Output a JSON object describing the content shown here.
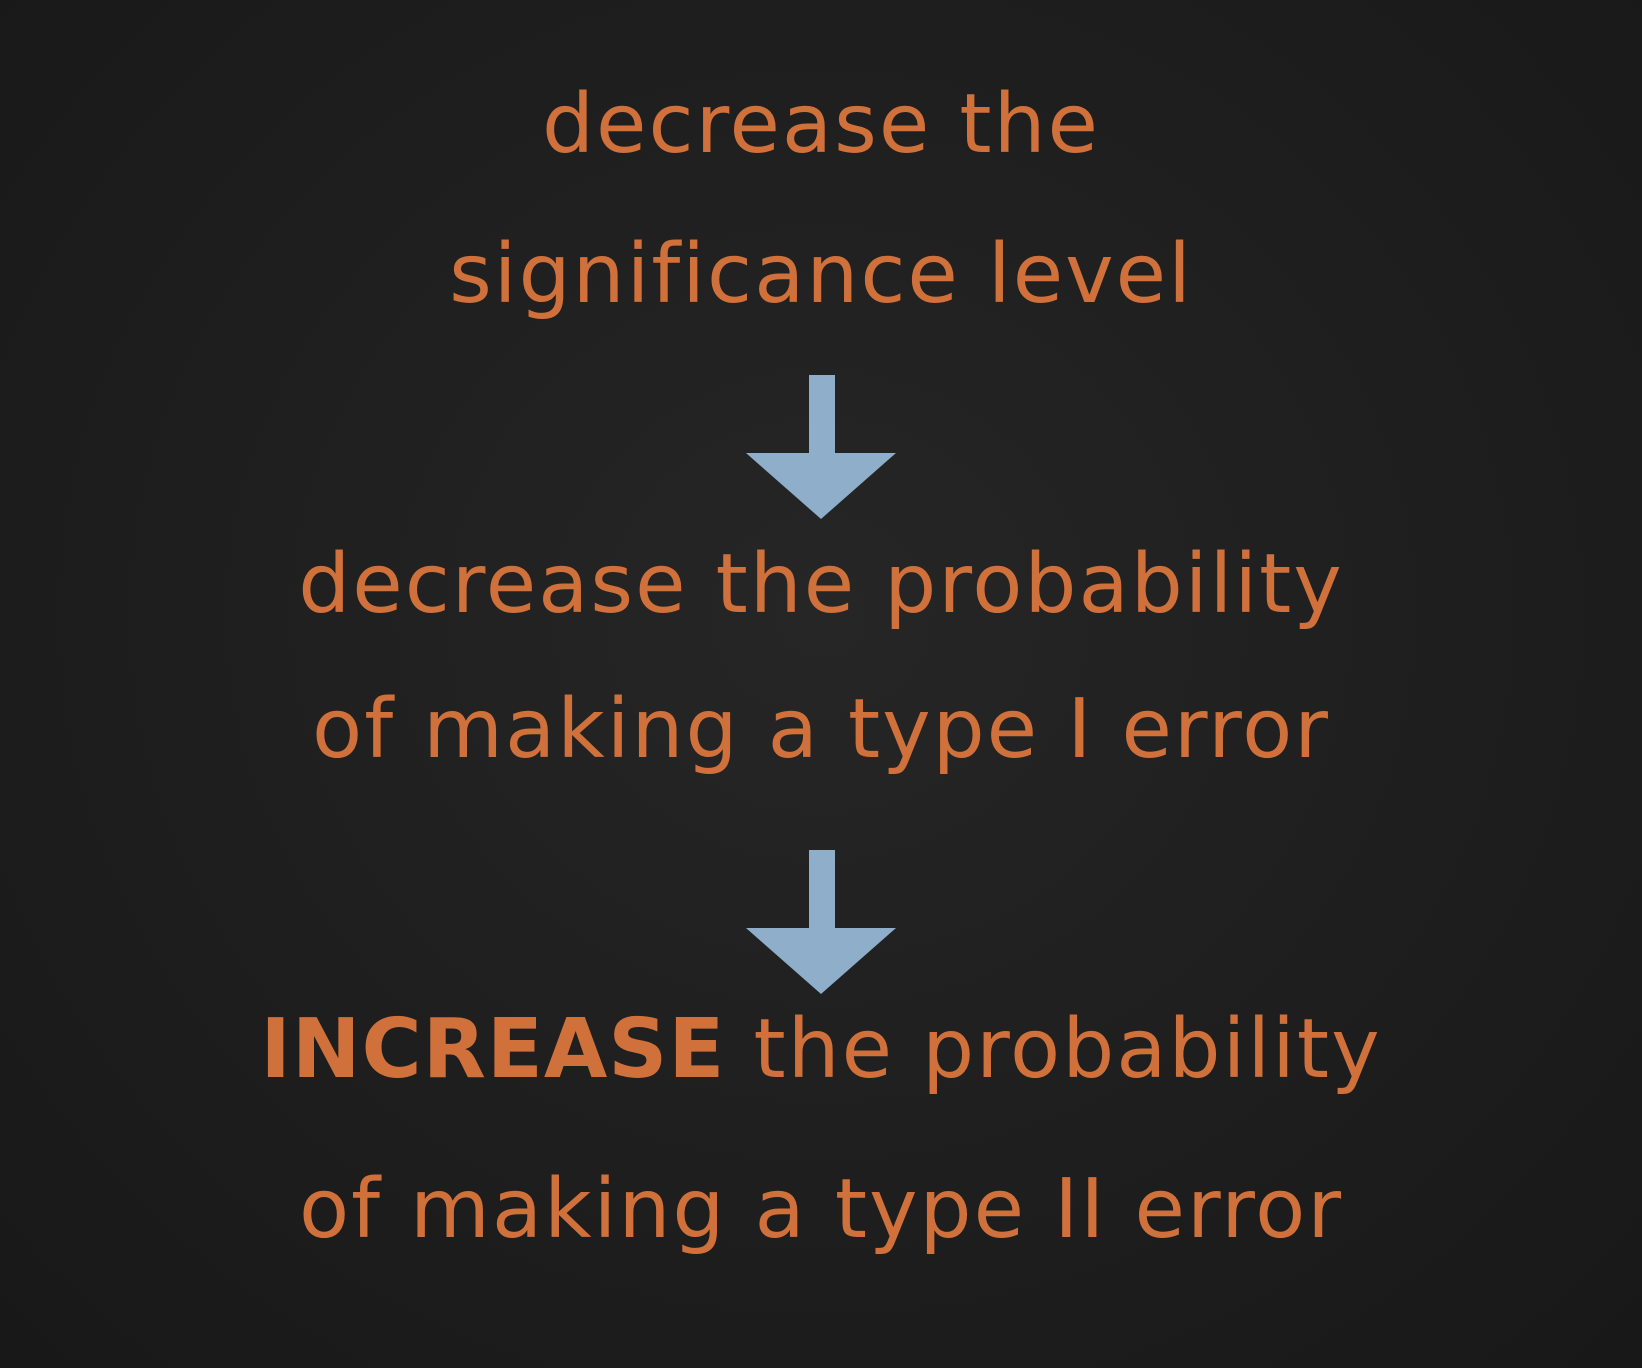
{
  "colors": {
    "background": "#1f1f1f",
    "text": "#d0703a",
    "arrow": "#8eaec9"
  },
  "flow": {
    "step1": {
      "line1": "decrease the",
      "line2": "significance level"
    },
    "step2": {
      "line1": "decrease the probability",
      "line2": "of making a type I error"
    },
    "step3": {
      "emphasis": "INCREASE",
      "line1_rest": " the probability",
      "line2": "of making a type II error"
    },
    "arrows": [
      "down-arrow-icon",
      "down-arrow-icon"
    ]
  }
}
